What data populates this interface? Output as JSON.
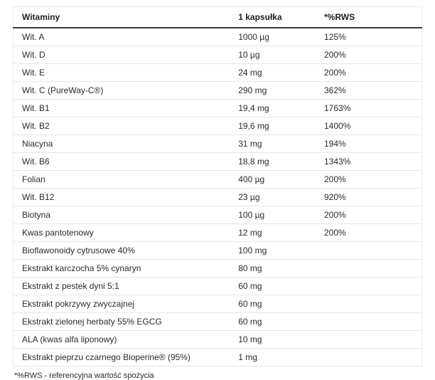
{
  "table": {
    "headers": [
      "Witaminy",
      "1 kapsułka",
      "*%RWS"
    ],
    "rows": [
      {
        "label": "Wit. A",
        "per_capsule": "1000 µg",
        "rws": "125%"
      },
      {
        "label": "Wit. D",
        "per_capsule": "10 µg",
        "rws": "200%"
      },
      {
        "label": "Wit. E",
        "per_capsule": "24 mg",
        "rws": "200%"
      },
      {
        "label": "Wit. C (PureWay-C®)",
        "per_capsule": "290 mg",
        "rws": "362%"
      },
      {
        "label": "Wit. B1",
        "per_capsule": "19,4 mg",
        "rws": "1763%"
      },
      {
        "label": "Wit. B2",
        "per_capsule": "19,6 mg",
        "rws": "1400%"
      },
      {
        "label": "Niacyna",
        "per_capsule": "31 mg",
        "rws": "194%"
      },
      {
        "label": "Wit. B6",
        "per_capsule": "18,8 mg",
        "rws": "1343%"
      },
      {
        "label": "Folian",
        "per_capsule": "400 µg",
        "rws": "200%"
      },
      {
        "label": "Wit. B12",
        "per_capsule": "23 µg",
        "rws": "920%"
      },
      {
        "label": "Biotyna",
        "per_capsule": "100 µg",
        "rws": "200%"
      },
      {
        "label": "Kwas pantotenowy",
        "per_capsule": "12 mg",
        "rws": "200%"
      },
      {
        "label": "Bioflawonoidy cytrusowe 40%",
        "per_capsule": "100 mg",
        "rws": ""
      },
      {
        "label": "Ekstrakt karczocha 5% cynaryn",
        "per_capsule": "80 mg",
        "rws": ""
      },
      {
        "label": "Ekstrakt z pestek dyni 5:1",
        "per_capsule": "60 mg",
        "rws": ""
      },
      {
        "label": "Ekstrakt pokrzywy zwyczajnej",
        "per_capsule": "60 mg",
        "rws": ""
      },
      {
        "label": "Ekstrakt zielonej herbaty 55% EGCG",
        "per_capsule": "60 mg",
        "rws": ""
      },
      {
        "label": "ALA (kwas alfa liponowy)",
        "per_capsule": "10 mg",
        "rws": ""
      },
      {
        "label": "Ekstrakt pieprzu czarnego Bioperine® (95%)",
        "per_capsule": "1 mg",
        "rws": ""
      }
    ]
  },
  "footer": {
    "note": "*%RWS - referencyjna wartość spożycia"
  }
}
